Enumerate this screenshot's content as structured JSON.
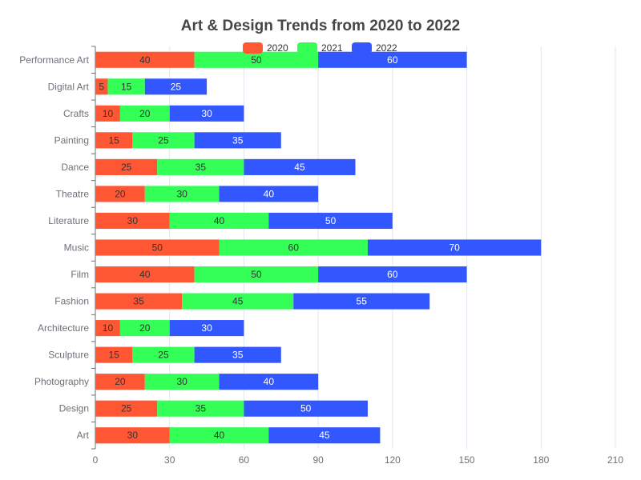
{
  "chart_data": {
    "type": "bar",
    "orientation": "horizontal",
    "stacked": true,
    "title": "Art & Design Trends from 2020 to 2022",
    "categories": [
      "Art",
      "Design",
      "Photography",
      "Sculpture",
      "Architecture",
      "Fashion",
      "Film",
      "Music",
      "Literature",
      "Theatre",
      "Dance",
      "Painting",
      "Crafts",
      "Digital Art",
      "Performance Art"
    ],
    "series": [
      {
        "name": "2020",
        "color": "#ff5733",
        "label_color": "#333333",
        "values": [
          30,
          25,
          20,
          15,
          10,
          35,
          40,
          50,
          30,
          20,
          25,
          15,
          10,
          5,
          40
        ]
      },
      {
        "name": "2021",
        "color": "#33ff57",
        "label_color": "#333333",
        "values": [
          40,
          35,
          30,
          25,
          20,
          45,
          50,
          60,
          40,
          30,
          35,
          25,
          20,
          15,
          50
        ]
      },
      {
        "name": "2022",
        "color": "#3357ff",
        "label_color": "#ffffff",
        "values": [
          45,
          50,
          40,
          35,
          30,
          55,
          60,
          70,
          50,
          40,
          45,
          35,
          30,
          25,
          60
        ]
      }
    ],
    "xlim": [
      0,
      210
    ],
    "x_ticks": [
      0,
      30,
      60,
      90,
      120,
      150,
      180,
      210
    ],
    "grid": true,
    "legend_position": "top-center",
    "xlabel": "",
    "ylabel": ""
  }
}
